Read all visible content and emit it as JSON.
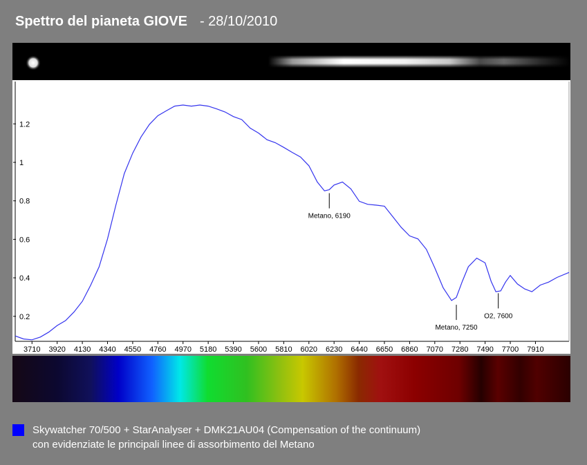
{
  "header": {
    "title": "Spettro del pianeta GIOVE",
    "date": "- 28/10/2010"
  },
  "legend": {
    "color": "#0000ff",
    "line1": "Skywatcher 70/500 + StarAnalyser + DMK21AU04 (Compensation of the continuum)",
    "line2": "con evidenziate le principali linee di assorbimento del Metano"
  },
  "chart_data": {
    "type": "line",
    "title": "",
    "xlabel": "",
    "ylabel": "",
    "xlim": [
      3570,
      8190
    ],
    "ylim": [
      0.07,
      1.42
    ],
    "x_ticks": [
      3710,
      3920,
      4130,
      4340,
      4550,
      4760,
      4970,
      5180,
      5390,
      5600,
      5810,
      6020,
      6230,
      6440,
      6650,
      6860,
      7070,
      7280,
      7490,
      7700,
      7910
    ],
    "y_ticks": [
      0.2,
      0.4,
      0.6,
      0.8,
      1,
      1.2
    ],
    "grid": false,
    "series": [
      {
        "color": "#3333ee",
        "x": [
          3570,
          3640,
          3710,
          3780,
          3850,
          3920,
          3990,
          4060,
          4130,
          4200,
          4270,
          4340,
          4410,
          4480,
          4550,
          4620,
          4690,
          4760,
          4830,
          4900,
          4970,
          5040,
          5110,
          5180,
          5250,
          5320,
          5390,
          5460,
          5530,
          5600,
          5670,
          5740,
          5810,
          5880,
          5950,
          6020,
          6090,
          6150,
          6190,
          6230,
          6300,
          6370,
          6440,
          6510,
          6580,
          6650,
          6720,
          6790,
          6860,
          6930,
          7000,
          7070,
          7140,
          7210,
          7250,
          7300,
          7350,
          7420,
          7490,
          7540,
          7580,
          7620,
          7660,
          7700,
          7760,
          7820,
          7880,
          7950,
          8020,
          8090,
          8190
        ],
        "y": [
          0.1,
          0.08,
          0.08,
          0.09,
          0.12,
          0.15,
          0.18,
          0.22,
          0.28,
          0.36,
          0.46,
          0.6,
          0.78,
          0.94,
          1.05,
          1.13,
          1.2,
          1.24,
          1.27,
          1.29,
          1.3,
          1.29,
          1.3,
          1.29,
          1.28,
          1.26,
          1.24,
          1.22,
          1.18,
          1.15,
          1.12,
          1.1,
          1.08,
          1.05,
          1.03,
          0.98,
          0.9,
          0.85,
          0.86,
          0.88,
          0.9,
          0.86,
          0.8,
          0.78,
          0.78,
          0.77,
          0.72,
          0.66,
          0.62,
          0.6,
          0.55,
          0.45,
          0.35,
          0.28,
          0.3,
          0.38,
          0.46,
          0.5,
          0.48,
          0.38,
          0.33,
          0.33,
          0.38,
          0.41,
          0.37,
          0.34,
          0.33,
          0.36,
          0.38,
          0.4,
          0.43
        ]
      }
    ],
    "annotations": [
      {
        "label": "Metano, 6190",
        "x": 6190,
        "y": 0.84
      },
      {
        "label": "Metano, 7250",
        "x": 7250,
        "y": 0.26
      },
      {
        "label": "O2, 7600",
        "x": 7600,
        "y": 0.32
      }
    ]
  }
}
